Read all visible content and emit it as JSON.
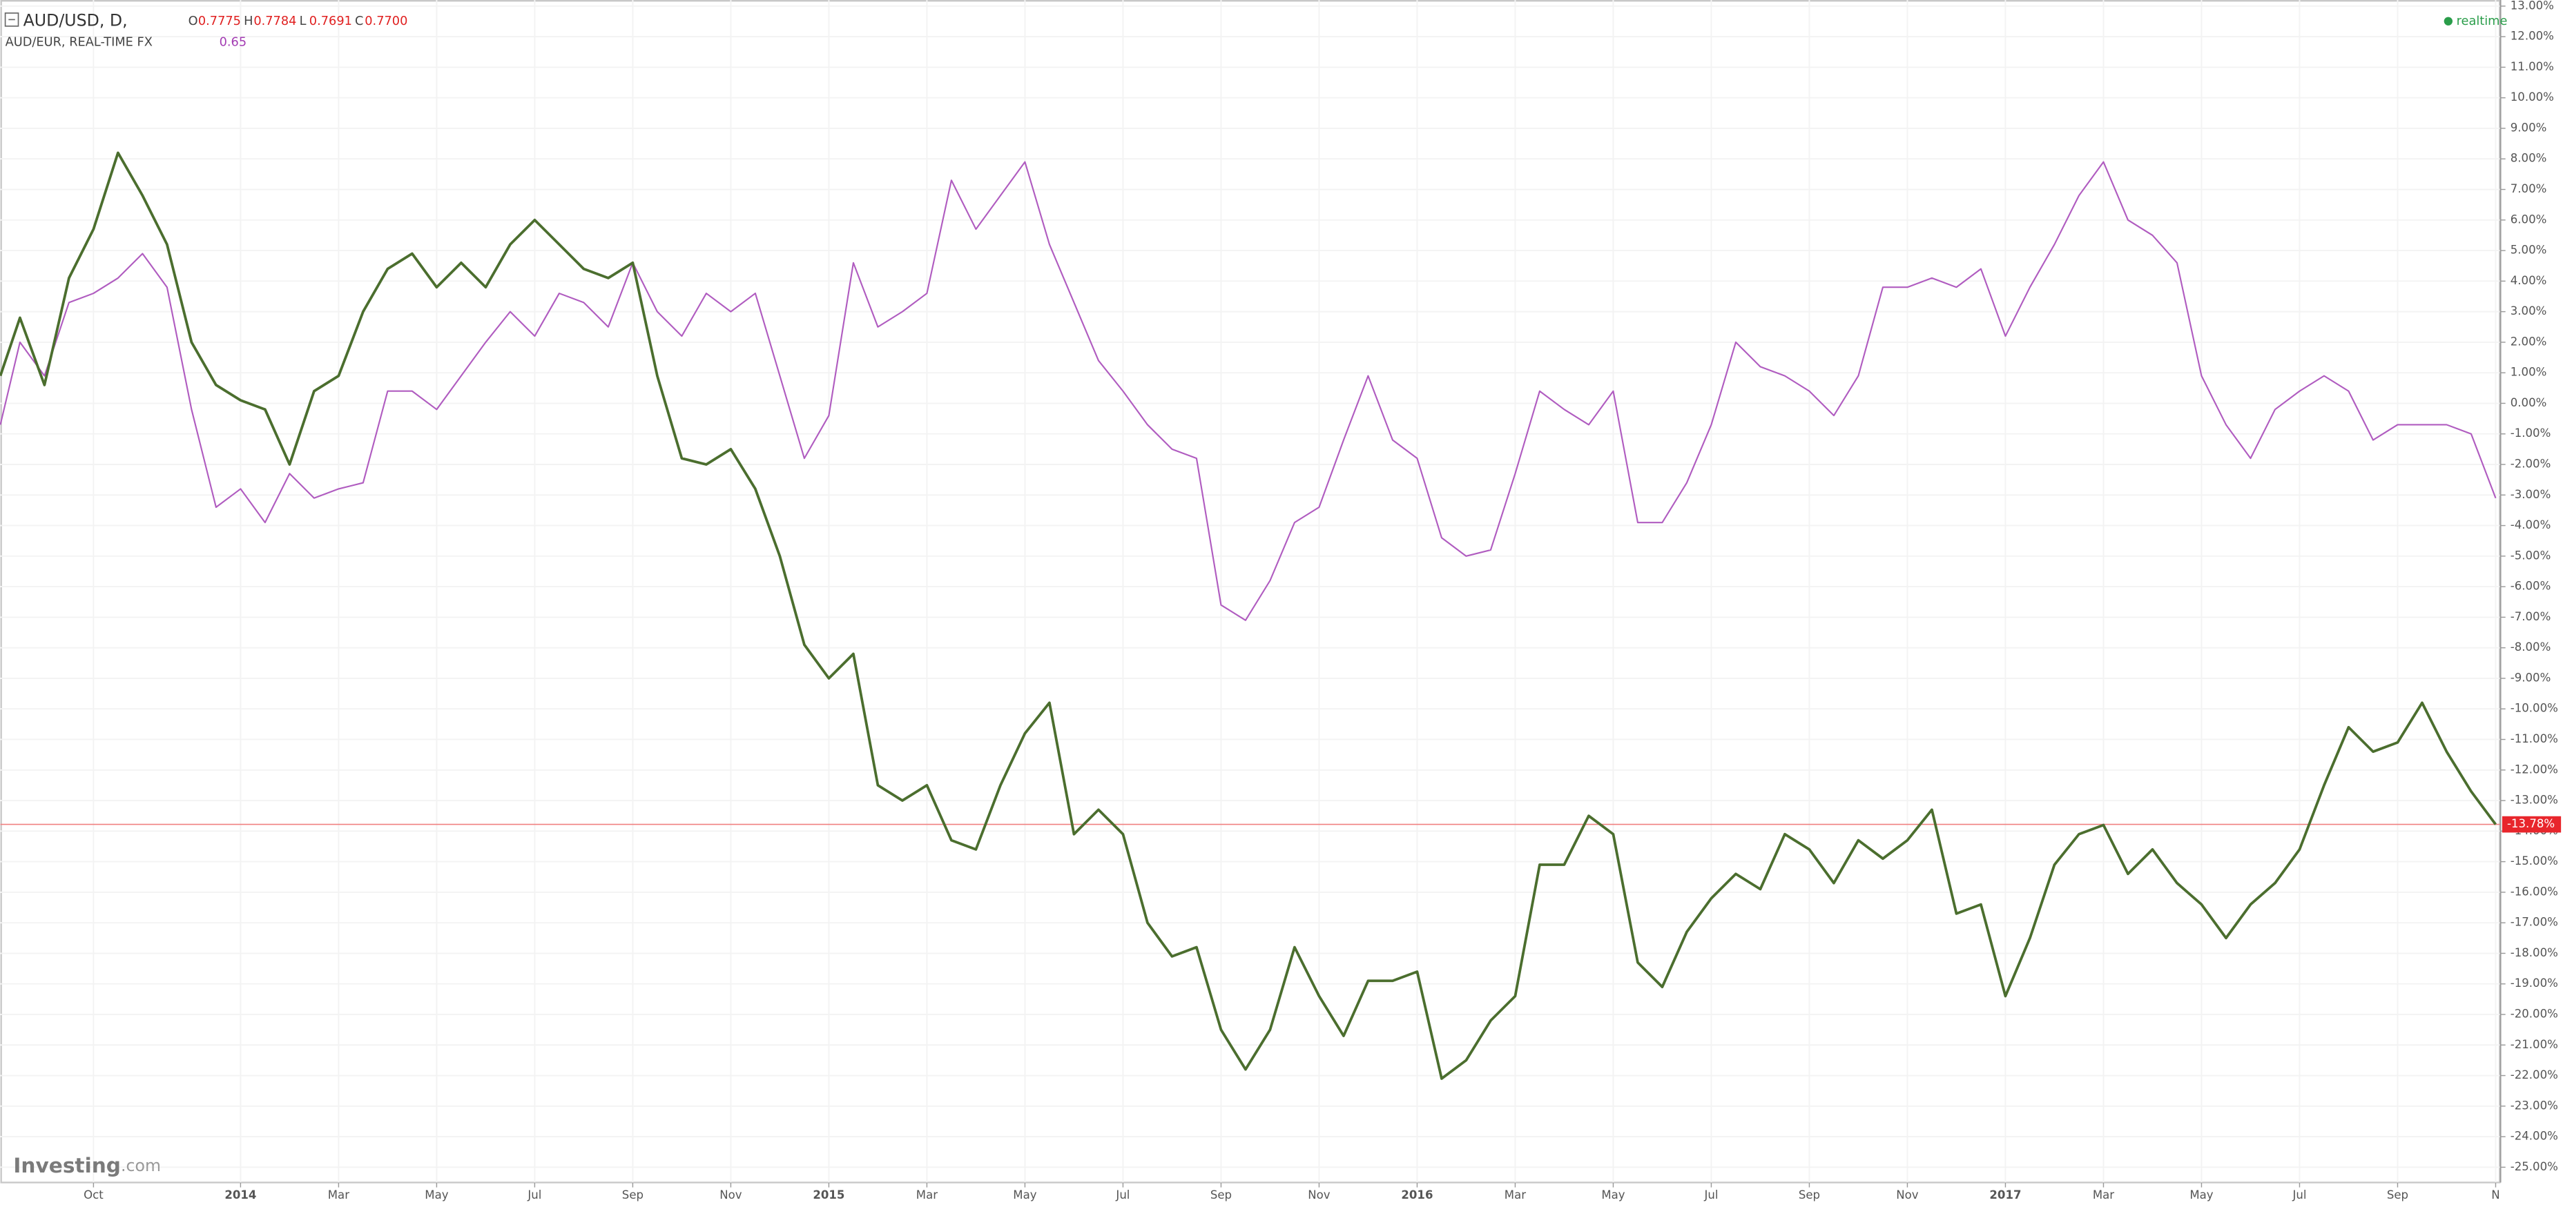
{
  "chart_data": {
    "type": "line",
    "ohlc": [
      [
        "O",
        "0.7775"
      ],
      [
        "H",
        "0.7784"
      ],
      [
        "L",
        "0.7691"
      ],
      [
        "C",
        "0.7700"
      ]
    ],
    "status": "realtime",
    "brand": [
      "Investing",
      ".com"
    ],
    "x": [
      -1.9,
      -1.5,
      -1,
      -0.5,
      0,
      0.5,
      1,
      1.5,
      2,
      2.5,
      3,
      3.5,
      4,
      4.5,
      5,
      5.5,
      6,
      6.5,
      7,
      7.5,
      8,
      8.5,
      9,
      9.5,
      10,
      10.5,
      11,
      11.5,
      12,
      12.5,
      13,
      13.5,
      14,
      14.5,
      15,
      15.5,
      16,
      16.5,
      17,
      17.5,
      18,
      18.5,
      19,
      19.5,
      20,
      20.5,
      21,
      21.5,
      22,
      22.5,
      23,
      23.5,
      24,
      24.5,
      25,
      25.5,
      26,
      26.5,
      27,
      27.5,
      28,
      28.5,
      29,
      29.5,
      30,
      30.5,
      31,
      31.5,
      32,
      32.5,
      33,
      33.5,
      34,
      34.5,
      35,
      35.5,
      36,
      36.5,
      37,
      37.5,
      38,
      38.5,
      39,
      39.5,
      40,
      40.5,
      41,
      41.5,
      42,
      42.5,
      43,
      43.5,
      44,
      44.5,
      45,
      45.5,
      46,
      46.5,
      47,
      47.5,
      48,
      48.5,
      49
    ],
    "series": [
      {
        "name": "AUD/USD, D,",
        "color": "#4b6e2e",
        "last_value_label": "-13.78%",
        "values": [
          0.9,
          2.8,
          0.6,
          4.1,
          5.7,
          8.2,
          6.8,
          5.2,
          2.0,
          0.6,
          0.1,
          -0.2,
          -2.0,
          0.4,
          0.9,
          3.0,
          4.4,
          4.9,
          3.8,
          4.6,
          3.8,
          5.2,
          6.0,
          5.2,
          4.4,
          4.1,
          4.6,
          0.9,
          -1.8,
          -2.0,
          -1.5,
          -2.8,
          -5.0,
          -7.9,
          -9.0,
          -8.2,
          -12.5,
          -13.0,
          -12.5,
          -14.3,
          -14.6,
          -12.5,
          -10.8,
          -9.8,
          -14.1,
          -13.3,
          -14.1,
          -17.0,
          -18.1,
          -17.8,
          -20.5,
          -21.8,
          -20.5,
          -17.8,
          -19.4,
          -20.7,
          -18.9,
          -18.9,
          -18.6,
          -22.1,
          -21.5,
          -20.2,
          -19.4,
          -15.1,
          -15.1,
          -13.5,
          -14.1,
          -18.3,
          -19.1,
          -17.3,
          -16.2,
          -15.4,
          -15.9,
          -14.1,
          -14.6,
          -15.7,
          -14.3,
          -14.9,
          -14.3,
          -13.3,
          -16.7,
          -16.4,
          -19.4,
          -17.5,
          -15.1,
          -14.1,
          -13.8,
          -15.4,
          -14.6,
          -15.7,
          -16.4,
          -17.5,
          -16.4,
          -15.7,
          -14.6,
          -12.5,
          -10.6,
          -11.4,
          -11.1,
          -9.8,
          -11.4,
          -12.7,
          -13.78
        ]
      },
      {
        "name": "AUD/EUR, REAL-TIME FX",
        "color": "#b05cc0",
        "legend_value": "0.65",
        "values": [
          -0.7,
          2.0,
          0.9,
          3.3,
          3.6,
          4.1,
          4.9,
          3.8,
          -0.2,
          -3.4,
          -2.8,
          -3.9,
          -2.3,
          -3.1,
          -2.8,
          -2.6,
          0.4,
          0.4,
          -0.2,
          0.9,
          2.0,
          3.0,
          2.2,
          3.6,
          3.3,
          2.5,
          4.6,
          3.0,
          2.2,
          3.6,
          3.0,
          3.6,
          0.9,
          -1.8,
          -0.4,
          4.6,
          2.5,
          3.0,
          3.6,
          7.3,
          5.7,
          6.8,
          7.9,
          5.2,
          3.3,
          1.4,
          0.4,
          -0.7,
          -1.5,
          -1.8,
          -6.6,
          -7.1,
          -5.8,
          -3.9,
          -3.4,
          -1.2,
          0.9,
          -1.2,
          -1.8,
          -4.4,
          -5.0,
          -4.8,
          -2.3,
          0.4,
          -0.2,
          -0.7,
          0.4,
          -3.9,
          -3.9,
          -2.6,
          -0.7,
          2.0,
          1.2,
          0.9,
          0.4,
          -0.4,
          0.9,
          3.8,
          3.8,
          4.1,
          3.8,
          4.4,
          2.2,
          3.8,
          5.2,
          6.8,
          7.9,
          6.0,
          5.5,
          4.6,
          0.9,
          -0.7,
          -1.8,
          -0.2,
          0.4,
          0.9,
          0.4,
          -1.2,
          -0.7,
          -0.7,
          -0.7,
          -1.0,
          -3.1
        ]
      }
    ],
    "xlim": [
      -1.9,
      49.1
    ],
    "xticks": [
      {
        "value": 0,
        "label": "Oct"
      },
      {
        "value": 3,
        "label": "2014"
      },
      {
        "value": 5,
        "label": "Mar"
      },
      {
        "value": 7,
        "label": "May"
      },
      {
        "value": 9,
        "label": "Jul"
      },
      {
        "value": 11,
        "label": "Sep"
      },
      {
        "value": 13,
        "label": "Nov"
      },
      {
        "value": 15,
        "label": "2015"
      },
      {
        "value": 17,
        "label": "Mar"
      },
      {
        "value": 19,
        "label": "May"
      },
      {
        "value": 21,
        "label": "Jul"
      },
      {
        "value": 23,
        "label": "Sep"
      },
      {
        "value": 25,
        "label": "Nov"
      },
      {
        "value": 27,
        "label": "2016"
      },
      {
        "value": 29,
        "label": "Mar"
      },
      {
        "value": 31,
        "label": "May"
      },
      {
        "value": 33,
        "label": "Jul"
      },
      {
        "value": 35,
        "label": "Sep"
      },
      {
        "value": 37,
        "label": "Nov"
      },
      {
        "value": 39,
        "label": "2017"
      },
      {
        "value": 41,
        "label": "Mar"
      },
      {
        "value": 43,
        "label": "May"
      },
      {
        "value": 45,
        "label": "Jul"
      },
      {
        "value": 47,
        "label": "Sep"
      },
      {
        "value": 49,
        "label": "N"
      }
    ],
    "ylim": [
      -25.5,
      13.2
    ],
    "yticks": [
      {
        "value": 13,
        "label": "13.00%"
      },
      {
        "value": 12,
        "label": "12.00%"
      },
      {
        "value": 11,
        "label": "11.00%"
      },
      {
        "value": 10,
        "label": "10.00%"
      },
      {
        "value": 9,
        "label": "9.00%"
      },
      {
        "value": 8,
        "label": "8.00%"
      },
      {
        "value": 7,
        "label": "7.00%"
      },
      {
        "value": 6,
        "label": "6.00%"
      },
      {
        "value": 5,
        "label": "5.00%"
      },
      {
        "value": 4,
        "label": "4.00%"
      },
      {
        "value": 3,
        "label": "3.00%"
      },
      {
        "value": 2,
        "label": "2.00%"
      },
      {
        "value": 1,
        "label": "1.00%"
      },
      {
        "value": 0,
        "label": "0.00%"
      },
      {
        "value": -1,
        "label": "-1.00%"
      },
      {
        "value": -2,
        "label": "-2.00%"
      },
      {
        "value": -3,
        "label": "-3.00%"
      },
      {
        "value": -4,
        "label": "-4.00%"
      },
      {
        "value": -5,
        "label": "-5.00%"
      },
      {
        "value": -6,
        "label": "-6.00%"
      },
      {
        "value": -7,
        "label": "-7.00%"
      },
      {
        "value": -8,
        "label": "-8.00%"
      },
      {
        "value": -9,
        "label": "-9.00%"
      },
      {
        "value": -10,
        "label": "-10.00%"
      },
      {
        "value": -11,
        "label": "-11.00%"
      },
      {
        "value": -12,
        "label": "-12.00%"
      },
      {
        "value": -13,
        "label": "-13.00%"
      },
      {
        "value": -14,
        "label": "-14.00%"
      },
      {
        "value": -15,
        "label": "-15.00%"
      },
      {
        "value": -16,
        "label": "-16.00%"
      },
      {
        "value": -17,
        "label": "-17.00%"
      },
      {
        "value": -18,
        "label": "-18.00%"
      },
      {
        "value": -19,
        "label": "-19.00%"
      },
      {
        "value": -20,
        "label": "-20.00%"
      },
      {
        "value": -21,
        "label": "-21.00%"
      },
      {
        "value": -22,
        "label": "-22.00%"
      },
      {
        "value": -23,
        "label": "-23.00%"
      },
      {
        "value": -24,
        "label": "-24.00%"
      },
      {
        "value": -25,
        "label": "-25.00%"
      }
    ],
    "grid": true
  }
}
